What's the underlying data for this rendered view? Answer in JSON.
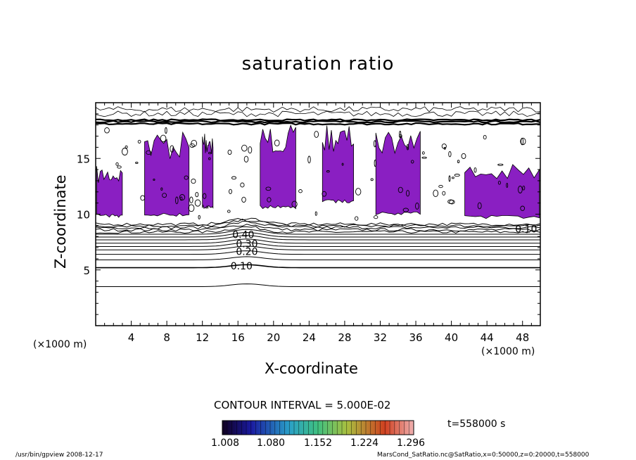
{
  "chart_data": {
    "type": "heatmap",
    "title": "saturation ratio",
    "xlabel": "X-coordinate",
    "ylabel": "Z-coordinate",
    "x_unit_label": "(×1000 m)",
    "xlim": [
      0,
      50
    ],
    "ylim": [
      0,
      20
    ],
    "x_ticks": [
      4,
      8,
      12,
      16,
      20,
      24,
      28,
      32,
      36,
      40,
      44,
      48
    ],
    "y_ticks": [
      5,
      10,
      15
    ],
    "contour_interval_label": "CONTOUR INTERVAL = 5.000E-02",
    "contour_labels": [
      {
        "text": "0.10",
        "x": 16.4,
        "z": 5.3
      },
      {
        "text": "0.20",
        "x": 17.0,
        "z": 6.6
      },
      {
        "text": "0.30",
        "x": 17.0,
        "z": 7.3
      },
      {
        "text": "0.40",
        "x": 16.6,
        "z": 8.1
      },
      {
        "text": "0.10",
        "x": 48.4,
        "z": 8.6
      }
    ],
    "contour_levels_z": [
      3.5,
      5.2,
      5.9,
      6.4,
      6.8,
      7.1,
      7.4,
      7.7,
      7.95,
      8.2,
      8.4,
      8.6,
      8.8,
      8.95,
      9.1
    ],
    "supersaturated_regions": [
      {
        "x0": 0.1,
        "x1": 3.0,
        "z0": 9.7,
        "z1": 14.3
      },
      {
        "x0": 5.5,
        "x1": 10.5,
        "z0": 9.8,
        "z1": 17.5
      },
      {
        "x0": 12.0,
        "x1": 13.2,
        "z0": 10.5,
        "z1": 17.8
      },
      {
        "x0": 18.5,
        "x1": 22.5,
        "z0": 10.5,
        "z1": 18.0
      },
      {
        "x0": 25.5,
        "x1": 29.0,
        "z0": 11.0,
        "z1": 18.0
      },
      {
        "x0": 31.5,
        "x1": 36.5,
        "z0": 9.9,
        "z1": 18.0
      },
      {
        "x0": 41.5,
        "x1": 49.9,
        "z0": 9.6,
        "z1": 14.5
      }
    ],
    "colorbar": {
      "tick_labels": [
        "1.008",
        "1.080",
        "1.152",
        "1.224",
        "1.296"
      ],
      "min": 1.008,
      "max": 1.296
    },
    "time_label": "t=558000 s",
    "fill_color": "#8a1fc2",
    "contour_color": "#000000"
  },
  "footer": {
    "left": "/usr/bin/gpview   2008-12-17",
    "right": "MarsCond_SatRatio.nc@SatRatio,x=0:50000,z=0:20000,t=558000"
  }
}
